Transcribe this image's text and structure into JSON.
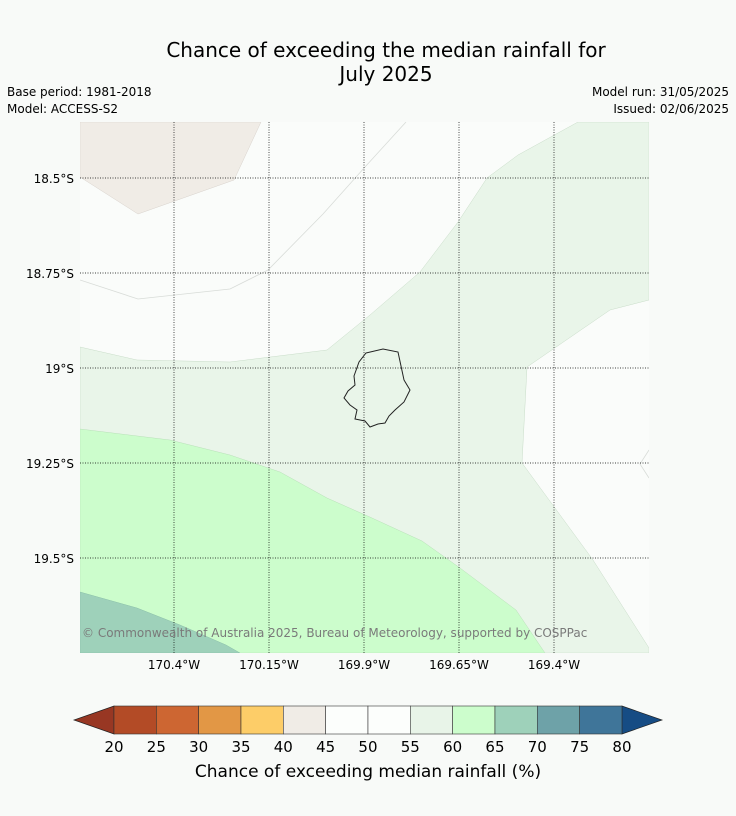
{
  "title": {
    "line1": "Chance of exceeding the median rainfall for",
    "line2": "July 2025"
  },
  "meta": {
    "base_period": "Base period: 1981-2018",
    "model": "Model: ACCESS-S2",
    "model_run": "Model run: 31/05/2025",
    "issued": "Issued: 02/06/2025"
  },
  "map": {
    "latitude_labels": [
      "18.5°S",
      "18.75°S",
      "19°S",
      "19.25°S",
      "19.5°S"
    ],
    "longitude_labels": [
      "170.4°W",
      "170.15°W",
      "169.9°W",
      "169.65°W",
      "169.4°W"
    ],
    "copyright": "© Commonwealth of Australia 2025, Bureau of Meteorology, supported by COSPPac"
  },
  "colorbar": {
    "title": "Chance of exceeding median rainfall (%)",
    "ticks": [
      "20",
      "25",
      "30",
      "35",
      "40",
      "45",
      "50",
      "55",
      "60",
      "65",
      "70",
      "75",
      "80"
    ],
    "colors": [
      "#b34b26",
      "#cd6632",
      "#e29745",
      "#fdcd68",
      "#f0ece6",
      "#fcfefc",
      "#fcfefc",
      "#e8f4e8",
      "#ccfdcc",
      "#9ed1ba",
      "#6ea2a8",
      "#3f7599"
    ],
    "under_color": "#983723",
    "over_color": "#164c84"
  }
}
